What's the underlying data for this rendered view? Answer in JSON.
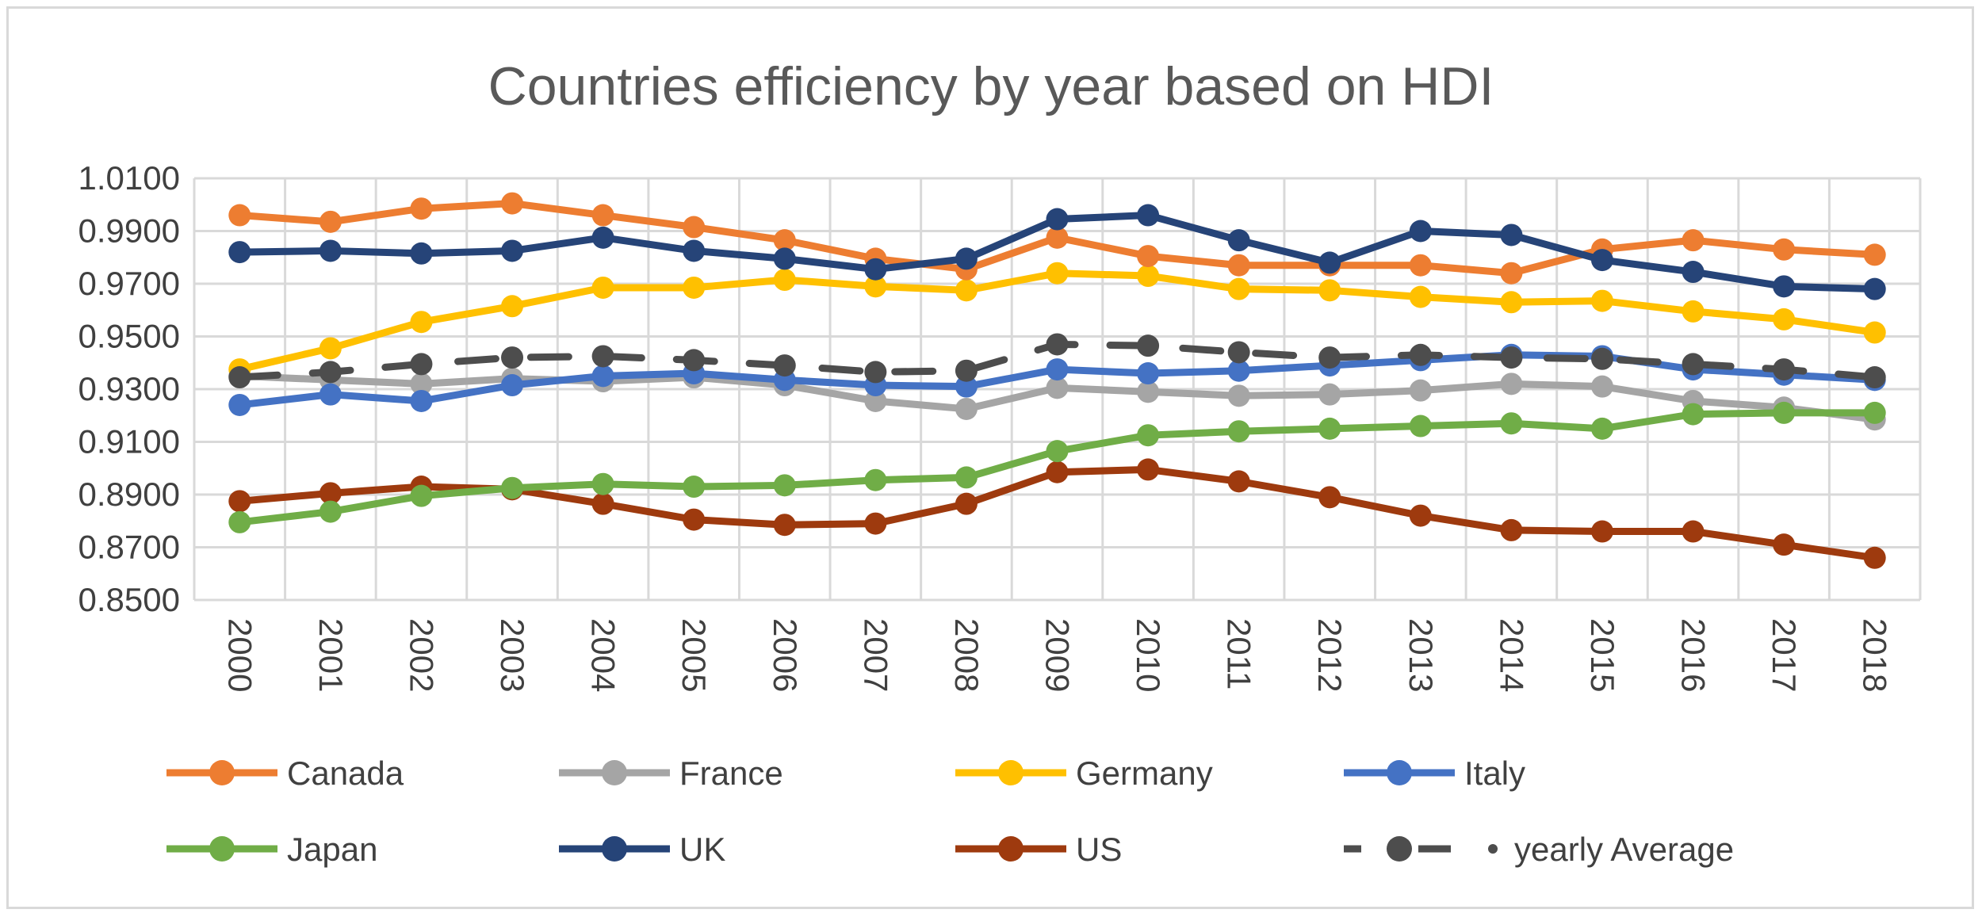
{
  "chart_data": {
    "type": "line",
    "title": "Countries efficiency by year based on HDI",
    "xlabel": "",
    "ylabel": "",
    "x": [
      "2000",
      "2001",
      "2002",
      "2003",
      "2004",
      "2005",
      "2006",
      "2007",
      "2008",
      "2009",
      "2010",
      "2011",
      "2012",
      "2013",
      "2014",
      "2015",
      "2016",
      "2017",
      "2018"
    ],
    "ylim": [
      0.85,
      1.01
    ],
    "yticks": [
      "1.0100",
      "0.9900",
      "0.9700",
      "0.9500",
      "0.9300",
      "0.9100",
      "0.8900",
      "0.8700",
      "0.8500"
    ],
    "grid": true,
    "legend_position": "bottom",
    "series": [
      {
        "name": "Canada",
        "color": "#ED7D31",
        "dash": "solid",
        "values": [
          0.996,
          0.9935,
          0.9985,
          1.0005,
          0.996,
          0.9915,
          0.9865,
          0.9795,
          0.9755,
          0.9875,
          0.9805,
          0.977,
          0.977,
          0.977,
          0.974,
          0.983,
          0.9865,
          0.983,
          0.981
        ]
      },
      {
        "name": "France",
        "color": "#A5A5A5",
        "dash": "solid",
        "values": [
          0.935,
          0.9335,
          0.932,
          0.934,
          0.933,
          0.9345,
          0.9315,
          0.9255,
          0.9225,
          0.9305,
          0.929,
          0.9275,
          0.928,
          0.9295,
          0.932,
          0.931,
          0.9255,
          0.923,
          0.9185
        ]
      },
      {
        "name": "Germany",
        "color": "#FFC000",
        "dash": "solid",
        "values": [
          0.9375,
          0.9455,
          0.9555,
          0.9615,
          0.9685,
          0.9685,
          0.9715,
          0.969,
          0.9675,
          0.974,
          0.973,
          0.968,
          0.9675,
          0.965,
          0.963,
          0.9635,
          0.9595,
          0.9565,
          0.9515
        ]
      },
      {
        "name": "Italy",
        "color": "#4472C4",
        "dash": "solid",
        "values": [
          0.924,
          0.928,
          0.9255,
          0.9315,
          0.935,
          0.936,
          0.9335,
          0.9315,
          0.931,
          0.9375,
          0.936,
          0.937,
          0.939,
          0.941,
          0.943,
          0.9425,
          0.9375,
          0.9355,
          0.9335
        ]
      },
      {
        "name": "Japan",
        "color": "#70AD47",
        "dash": "solid",
        "values": [
          0.8795,
          0.8835,
          0.8895,
          0.8925,
          0.894,
          0.893,
          0.8935,
          0.8955,
          0.8965,
          0.9065,
          0.9125,
          0.914,
          0.915,
          0.916,
          0.917,
          0.915,
          0.9205,
          0.921,
          0.921
        ]
      },
      {
        "name": "UK",
        "color": "#264478",
        "dash": "solid",
        "values": [
          0.982,
          0.9825,
          0.9815,
          0.9825,
          0.9875,
          0.9825,
          0.9795,
          0.9755,
          0.9795,
          0.9945,
          0.996,
          0.9865,
          0.978,
          0.99,
          0.9885,
          0.979,
          0.9745,
          0.969,
          0.968
        ]
      },
      {
        "name": "US",
        "color": "#9E3A0E",
        "dash": "solid",
        "values": [
          0.8875,
          0.8905,
          0.893,
          0.892,
          0.8865,
          0.8805,
          0.8785,
          0.879,
          0.8865,
          0.8985,
          0.8995,
          0.895,
          0.889,
          0.882,
          0.8765,
          0.876,
          0.876,
          0.871,
          0.866
        ]
      },
      {
        "name": "yearly Average",
        "color": "#4D4D4D",
        "dash": "dash",
        "values": [
          0.9345,
          0.9365,
          0.9395,
          0.942,
          0.9425,
          0.941,
          0.939,
          0.9365,
          0.937,
          0.947,
          0.9465,
          0.944,
          0.942,
          0.943,
          0.942,
          0.9415,
          0.9395,
          0.9375,
          0.9345
        ]
      }
    ]
  }
}
